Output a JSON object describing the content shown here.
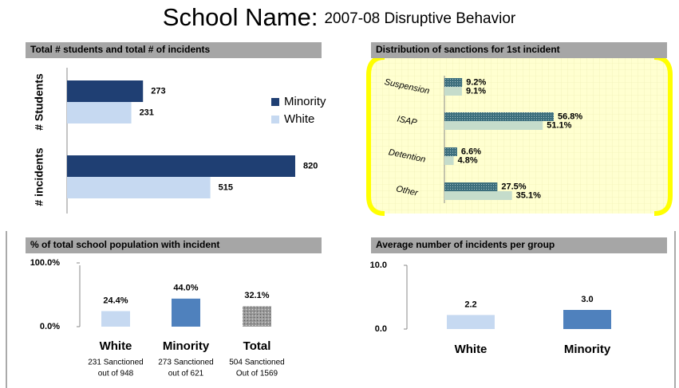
{
  "title_main": "School Name:",
  "title_sub": "2007-08 Disruptive Behavior",
  "chart_data": [
    {
      "type": "bar",
      "orientation": "horizontal",
      "title": "Total # students and  total # of incidents",
      "categories": [
        "# Students",
        "# incidents"
      ],
      "series": [
        {
          "name": "Minority",
          "color": "#1f3f73",
          "values": [
            273,
            820
          ]
        },
        {
          "name": "White",
          "color": "#c6d9f1",
          "values": [
            231,
            515
          ]
        }
      ],
      "legend": "right"
    },
    {
      "type": "bar",
      "orientation": "horizontal",
      "title": "Distribution of sanctions for 1st incident",
      "categories": [
        "Suspension",
        "ISAP",
        "Detention",
        "Other"
      ],
      "series": [
        {
          "color": "#3d6f7d",
          "values": [
            9.2,
            56.8,
            6.6,
            27.5
          ],
          "value_labels": [
            "9.2%",
            "56.8%",
            "6.6%",
            "27.5%"
          ]
        },
        {
          "color": "#c5dccb",
          "values": [
            9.1,
            51.1,
            4.8,
            35.1
          ],
          "value_labels": [
            "9.1%",
            "51.1%",
            "4.8%",
            "35.1%"
          ]
        }
      ]
    },
    {
      "type": "bar",
      "title": "% of total school population with incident",
      "categories": [
        "White",
        "Minority",
        "Total"
      ],
      "values": [
        24.4,
        44.0,
        32.1
      ],
      "value_labels": [
        "24.4%",
        "44.0%",
        "32.1%"
      ],
      "colors": [
        "#c6d9f1",
        "#4f81bd",
        "#a6a6a6"
      ],
      "ylim": [
        0,
        100
      ],
      "yticks": [
        {
          "value": 0,
          "label": "0.0%"
        },
        {
          "value": 100,
          "label": "100.0%"
        }
      ],
      "sublabels": [
        [
          "231 Sanctioned",
          "out of 948"
        ],
        [
          "273 Sanctioned",
          "out of 621"
        ],
        [
          "504 Sanctioned",
          "Out of 1569"
        ]
      ]
    },
    {
      "type": "bar",
      "title": "Average number of incidents per group",
      "categories": [
        "White",
        "Minority"
      ],
      "values": [
        2.2,
        3.0
      ],
      "value_labels": [
        "2.2",
        "3.0"
      ],
      "colors": [
        "#c6d9f1",
        "#4f81bd"
      ],
      "ylim": [
        0,
        10
      ],
      "yticks": [
        {
          "value": 0,
          "label": "0.0"
        },
        {
          "value": 10,
          "label": "10.0"
        }
      ]
    }
  ]
}
